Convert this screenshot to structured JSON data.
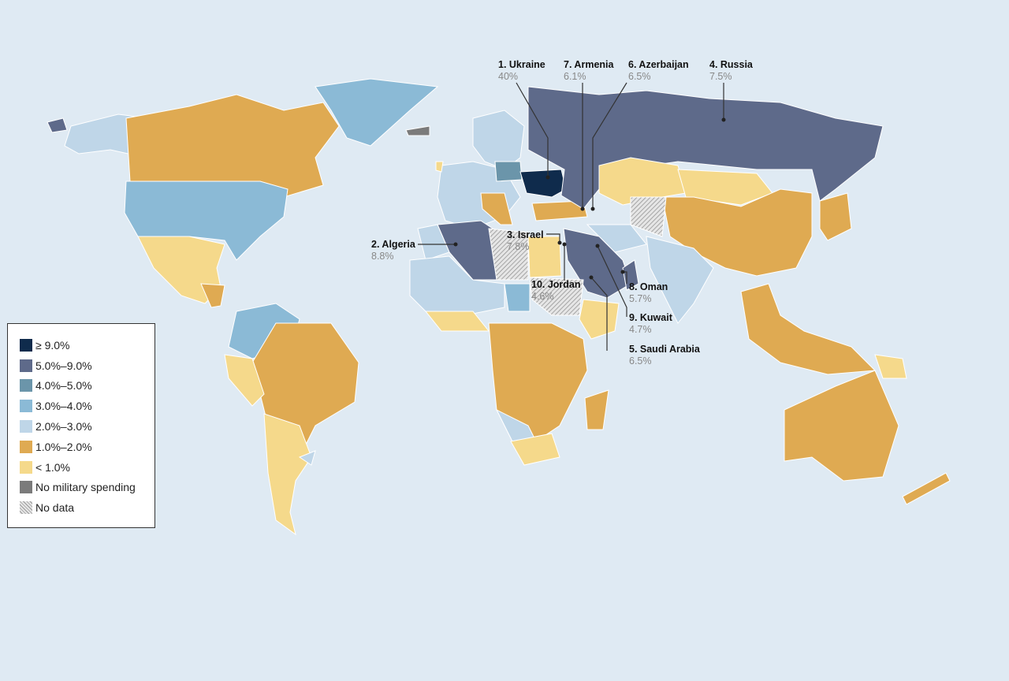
{
  "legend": {
    "items": [
      {
        "label": "≥ 9.0%",
        "color": "#0f2b4c"
      },
      {
        "label": "5.0%–9.0%",
        "color": "#5e6a8a"
      },
      {
        "label": "4.0%–5.0%",
        "color": "#6b95aa"
      },
      {
        "label": "3.0%–4.0%",
        "color": "#8bbad6"
      },
      {
        "label": "2.0%–3.0%",
        "color": "#bfd6e8"
      },
      {
        "label": "1.0%–2.0%",
        "color": "#dfaa52"
      },
      {
        "label": "< 1.0%",
        "color": "#f5d98b"
      },
      {
        "label": "No military spending",
        "color": "#7b7b7b"
      },
      {
        "label": "No data",
        "color": "hatched"
      }
    ]
  },
  "callouts": [
    {
      "rank_name": "1. Ukraine",
      "value": "40%"
    },
    {
      "rank_name": "2. Algeria",
      "value": "8.8%"
    },
    {
      "rank_name": "3. Israel",
      "value": "7.8%"
    },
    {
      "rank_name": "4. Russia",
      "value": "7.5%"
    },
    {
      "rank_name": "5. Saudi Arabia",
      "value": "6.5%"
    },
    {
      "rank_name": "6. Azerbaijan",
      "value": "6.5%"
    },
    {
      "rank_name": "7. Armenia",
      "value": "6.1%"
    },
    {
      "rank_name": "8. Oman",
      "value": "5.7%"
    },
    {
      "rank_name": "9. Kuwait",
      "value": "4.7%"
    },
    {
      "rank_name": "10. Jordan",
      "value": "4.6%"
    }
  ],
  "colors": {
    "ocean": "#dfeaf3",
    "border": "#ffffff"
  }
}
